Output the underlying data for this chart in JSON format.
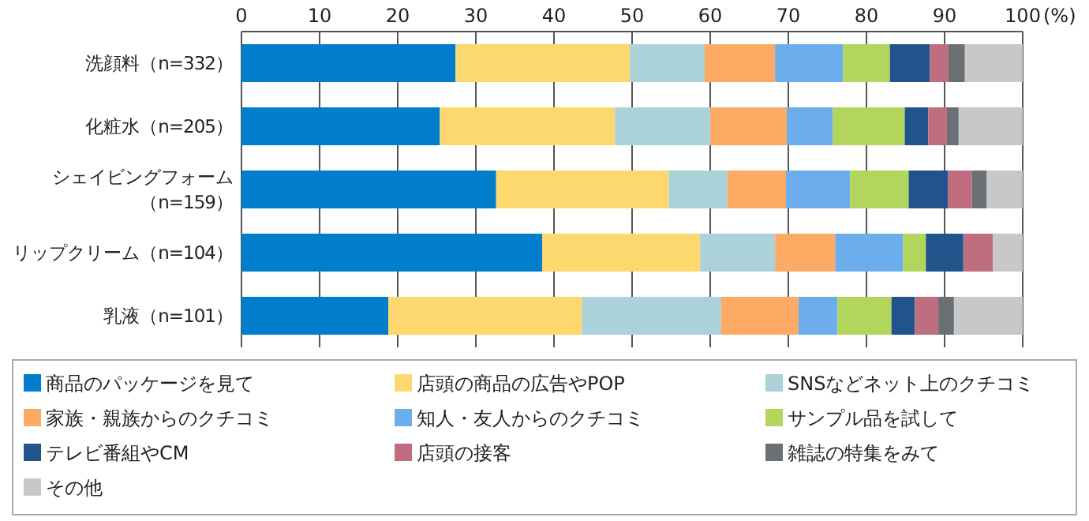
{
  "chart_data": {
    "type": "bar",
    "orientation": "horizontal",
    "stacked": true,
    "categories": [
      "洗顔料（n=332）",
      "化粧水（n=205）",
      "シェイビングフォーム（n=159）",
      "リップクリーム（n=104）",
      "乳液（n=101）"
    ],
    "xlabel": "(%)",
    "xlim": [
      0,
      100
    ],
    "xticks": [
      0,
      10,
      20,
      30,
      40,
      50,
      60,
      70,
      80,
      90,
      100
    ],
    "grid": "x",
    "legend": "bottom",
    "series": [
      {
        "name": "商品のパッケージを見て",
        "color": "#007dcb",
        "values": [
          27.4,
          25.4,
          32.6,
          38.5,
          18.8
        ]
      },
      {
        "name": "店頭の商品の広告やPOP",
        "color": "#fdd86e",
        "values": [
          22.3,
          22.4,
          22.1,
          20.2,
          24.8
        ]
      },
      {
        "name": "SNSなどネット上のクチコミ",
        "color": "#abd1d9",
        "values": [
          9.6,
          12.2,
          7.5,
          9.6,
          17.8
        ]
      },
      {
        "name": "家族・親族からのクチコミ",
        "color": "#fdaa64",
        "values": [
          9.0,
          9.8,
          7.5,
          7.7,
          9.9
        ]
      },
      {
        "name": "知人・友人からのクチコミ",
        "color": "#6caeec",
        "values": [
          8.7,
          5.9,
          8.2,
          8.7,
          5.0
        ]
      },
      {
        "name": "サンプル品を試して",
        "color": "#b2d55b",
        "values": [
          6.0,
          9.2,
          7.5,
          2.9,
          6.9
        ]
      },
      {
        "name": "テレビ番組やCM",
        "color": "#22548c",
        "values": [
          5.1,
          3.0,
          5.0,
          4.8,
          3.0
        ]
      },
      {
        "name": "店頭の接客",
        "color": "#bf6e80",
        "values": [
          2.4,
          2.4,
          3.1,
          3.8,
          3.0
        ]
      },
      {
        "name": "雑誌の特集をみて",
        "color": "#6b7075",
        "values": [
          2.1,
          1.5,
          1.9,
          0,
          2.0
        ]
      },
      {
        "name": "その他",
        "color": "#c8c8c8",
        "values": [
          7.4,
          8.2,
          4.6,
          3.8,
          8.8
        ]
      }
    ]
  }
}
